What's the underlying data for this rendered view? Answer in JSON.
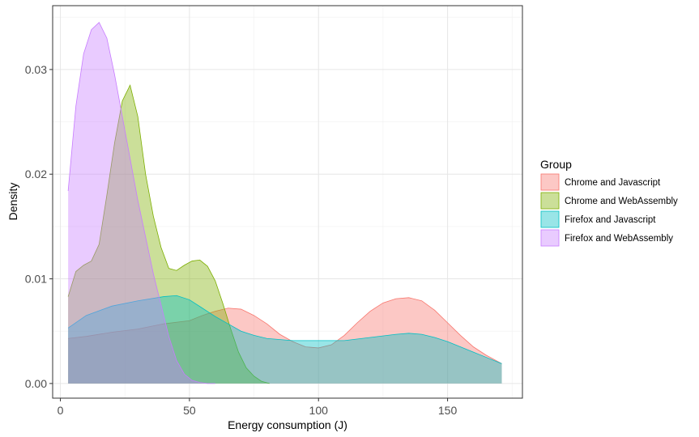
{
  "chart_data": {
    "type": "area",
    "title": "",
    "xlabel": "Energy consumption (J)",
    "ylabel": "Density",
    "xlim": [
      -3,
      179
    ],
    "ylim": [
      -0.0014,
      0.0361
    ],
    "x_ticks": [
      0,
      50,
      100,
      150
    ],
    "x_tick_labels": [
      "0",
      "50",
      "100",
      "150"
    ],
    "y_ticks": [
      0.0,
      0.01,
      0.02,
      0.03
    ],
    "y_tick_labels": [
      "0.00",
      "0.01",
      "0.02",
      "0.03"
    ],
    "grid": true,
    "legend": {
      "title": "Group",
      "position": "right"
    },
    "series": [
      {
        "name": "Chrome and Javascript",
        "color": "#F8766D",
        "x": [
          3,
          10,
          20,
          30,
          40,
          50,
          55,
          60,
          65,
          70,
          75,
          80,
          85,
          90,
          95,
          100,
          105,
          110,
          115,
          120,
          125,
          130,
          135,
          140,
          145,
          150,
          155,
          160,
          165,
          171
        ],
        "y": [
          0.0043,
          0.0045,
          0.0049,
          0.0052,
          0.0057,
          0.006,
          0.0065,
          0.0069,
          0.0072,
          0.0071,
          0.0065,
          0.0057,
          0.0047,
          0.004,
          0.0035,
          0.0034,
          0.0037,
          0.0046,
          0.0058,
          0.0069,
          0.0077,
          0.0081,
          0.0082,
          0.0079,
          0.007,
          0.0058,
          0.0046,
          0.0035,
          0.0027,
          0.0019
        ]
      },
      {
        "name": "Chrome and WebAssembly",
        "color": "#7CAE00",
        "x": [
          3,
          6,
          9,
          12,
          15,
          18,
          21,
          24,
          27,
          30,
          33,
          36,
          39,
          42,
          45,
          48,
          51,
          54,
          57,
          60,
          63,
          66,
          69,
          72,
          75,
          78,
          81
        ],
        "y": [
          0.0083,
          0.0107,
          0.0113,
          0.0117,
          0.0133,
          0.018,
          0.023,
          0.027,
          0.0285,
          0.0255,
          0.02,
          0.016,
          0.013,
          0.011,
          0.0108,
          0.0113,
          0.0117,
          0.0118,
          0.0112,
          0.0098,
          0.0076,
          0.0052,
          0.003,
          0.0015,
          0.0007,
          0.0002,
          0.0
        ]
      },
      {
        "name": "Firefox and Javascript",
        "color": "#00BFC4",
        "x": [
          3,
          10,
          20,
          30,
          40,
          45,
          50,
          55,
          60,
          65,
          70,
          75,
          80,
          90,
          100,
          110,
          120,
          130,
          135,
          140,
          145,
          150,
          155,
          160,
          165,
          171
        ],
        "y": [
          0.0053,
          0.0065,
          0.0074,
          0.0079,
          0.0083,
          0.0084,
          0.008,
          0.0072,
          0.0064,
          0.0057,
          0.005,
          0.0046,
          0.0043,
          0.0041,
          0.0041,
          0.0041,
          0.0044,
          0.0047,
          0.0048,
          0.0047,
          0.0044,
          0.004,
          0.0035,
          0.003,
          0.0025,
          0.0019
        ]
      },
      {
        "name": "Firefox and WebAssembly",
        "color": "#C77CFF",
        "x": [
          3,
          6,
          9,
          12,
          15,
          18,
          21,
          24,
          27,
          30,
          33,
          36,
          39,
          42,
          45,
          48,
          51,
          54,
          57,
          60
        ],
        "y": [
          0.0184,
          0.0265,
          0.0315,
          0.0338,
          0.0345,
          0.033,
          0.0295,
          0.0255,
          0.0215,
          0.0175,
          0.014,
          0.0105,
          0.0075,
          0.0045,
          0.0022,
          0.0009,
          0.0003,
          0.0001,
          0.0,
          0.0
        ]
      }
    ]
  }
}
